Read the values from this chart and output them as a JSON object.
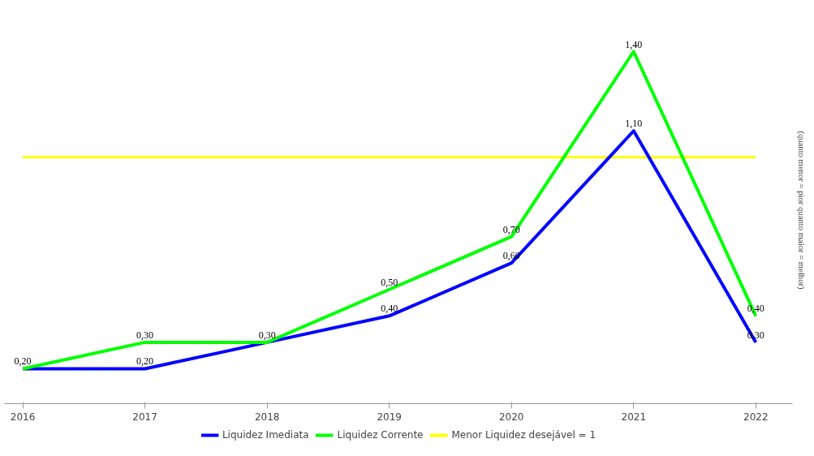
{
  "chart_data": {
    "type": "line",
    "categories": [
      "2016",
      "2017",
      "2018",
      "2019",
      "2020",
      "2021",
      "2022"
    ],
    "ylabel": "(quanto menor = pior quanto maior = melhor)",
    "tick_labels": "x",
    "grid": false,
    "legend": "bottom",
    "marker": "none",
    "line_style": "solid",
    "series": [
      {
        "name": "Liquidez Imediata",
        "color": "#0000ff",
        "values": [
          0.2,
          0.2,
          0.3,
          0.4,
          0.6,
          1.1,
          0.3
        ],
        "value_labels": [
          "0,20",
          "0,20",
          null,
          "0,40",
          "0,60",
          "1,10",
          "0,30"
        ]
      },
      {
        "name": "Liquidez Corrente",
        "color": "#00ff00",
        "values": [
          0.2,
          0.3,
          0.3,
          0.5,
          0.7,
          1.4,
          0.4
        ],
        "value_labels": [
          null,
          "0,30",
          "0,30",
          "0,50",
          "0,70",
          "1,40",
          "0,40"
        ]
      }
    ],
    "ref_lines": [
      {
        "axis": "y",
        "value": 1,
        "label": "Menor Liquidez desejável = 1",
        "color": "#ffff00"
      }
    ]
  }
}
